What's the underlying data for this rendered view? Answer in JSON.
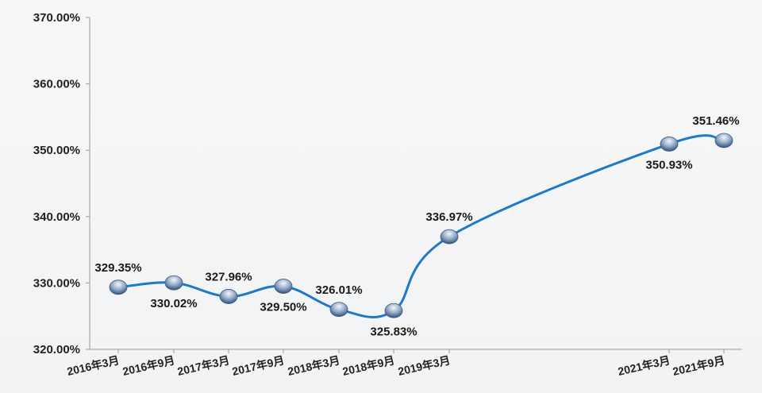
{
  "chart_data": {
    "type": "line",
    "x": [
      "2016年3月",
      "2016年9月",
      "2017年3月",
      "2017年9月",
      "2018年3月",
      "2018年9月",
      "2019年3月",
      "2021年3月",
      "2021年9月"
    ],
    "series": [
      {
        "values": [
          329.35,
          330.02,
          327.96,
          329.5,
          326.01,
          325.83,
          336.97,
          350.93,
          351.46
        ],
        "labels": [
          "329.35%",
          "330.02%",
          "327.96%",
          "329.50%",
          "326.01%",
          "325.83%",
          "336.97%",
          "350.93%",
          "351.46%"
        ],
        "label_side": [
          "above",
          "below",
          "above",
          "below",
          "above",
          "below",
          "above",
          "below",
          "above"
        ]
      }
    ],
    "yticks": [
      "320.00%",
      "330.00%",
      "340.00%",
      "350.00%",
      "360.00%",
      "370.00%"
    ],
    "ylim": [
      320,
      370
    ],
    "grid": false,
    "legend": "none",
    "colors": {
      "line": "#1f78c8",
      "marker": "#4a6f9c",
      "axis": "#999999"
    }
  }
}
